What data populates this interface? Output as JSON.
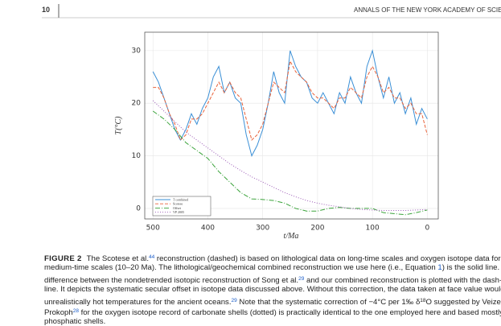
{
  "header": {
    "page": "10",
    "journal": "ANNALS OF THE NEW YORK ACADEMY OF SCIEN"
  },
  "chart_data": {
    "type": "line",
    "xlabel": "t/Ma",
    "ylabel": "T(°C)",
    "xlim": [
      515,
      -20
    ],
    "ylim": [
      -2,
      33.5
    ],
    "xticks": [
      500,
      400,
      300,
      200,
      100,
      0
    ],
    "yticks": [
      0,
      10,
      20,
      30
    ],
    "grid": true,
    "legend": "lower left",
    "series": [
      {
        "name": "T combined",
        "color": "#3a8fd6",
        "dash": "none",
        "x": [
          500,
          490,
          480,
          470,
          460,
          450,
          440,
          430,
          420,
          410,
          400,
          390,
          380,
          370,
          360,
          350,
          340,
          330,
          320,
          310,
          300,
          290,
          280,
          270,
          260,
          250,
          240,
          230,
          220,
          210,
          200,
          190,
          180,
          170,
          160,
          150,
          140,
          130,
          120,
          110,
          100,
          90,
          80,
          70,
          60,
          50,
          40,
          30,
          20,
          10,
          0
        ],
        "values": [
          26,
          24,
          21,
          18,
          15,
          13,
          15,
          18,
          16,
          19,
          21,
          25,
          27,
          22,
          24,
          21,
          20,
          14,
          10,
          12,
          15,
          20,
          26,
          22,
          20,
          30,
          27,
          25,
          24,
          21,
          20,
          22,
          20,
          18,
          22,
          20,
          25,
          22,
          20,
          27,
          30,
          25,
          21,
          25,
          20,
          22,
          18,
          21,
          16,
          19,
          17
        ]
      },
      {
        "name": "Scotese",
        "color": "#e8623a",
        "dash": "4,2",
        "x": [
          500,
          490,
          480,
          470,
          460,
          450,
          440,
          430,
          420,
          410,
          400,
          390,
          380,
          370,
          360,
          350,
          340,
          330,
          320,
          310,
          300,
          290,
          280,
          270,
          260,
          250,
          240,
          230,
          220,
          210,
          200,
          190,
          180,
          170,
          160,
          150,
          140,
          130,
          120,
          110,
          100,
          90,
          80,
          70,
          60,
          50,
          40,
          30,
          20,
          10,
          0
        ],
        "values": [
          23,
          23,
          21,
          18,
          16,
          13,
          14,
          17,
          17,
          18,
          20,
          22,
          24,
          22,
          24,
          22,
          21,
          17,
          13,
          14,
          16,
          20,
          24,
          23,
          22,
          28,
          26,
          25,
          24,
          22,
          21,
          21,
          20,
          19,
          21,
          21,
          23,
          22,
          21,
          25,
          27,
          25,
          22,
          23,
          21,
          21,
          19,
          20,
          18,
          18,
          14
        ]
      },
      {
        "name": "Offset",
        "color": "#3aa33a",
        "dash": "6,2,1,2",
        "x": [
          500,
          480,
          460,
          440,
          420,
          400,
          380,
          360,
          340,
          320,
          300,
          280,
          260,
          240,
          220,
          200,
          180,
          160,
          140,
          120,
          100,
          80,
          60,
          40,
          20,
          0
        ],
        "values": [
          18.5,
          17,
          15,
          12.5,
          11,
          9.5,
          7,
          5,
          3,
          1.8,
          1.7,
          1.5,
          1,
          0,
          -0.5,
          -0.5,
          0,
          0.2,
          0,
          0,
          0,
          -0.8,
          -1,
          -1.2,
          -0.8,
          -0.3
        ]
      },
      {
        "name": "VP 2005",
        "color": "#9b59b6",
        "dash": "1,2",
        "x": [
          500,
          480,
          460,
          440,
          420,
          400,
          380,
          360,
          340,
          320,
          300,
          280,
          260,
          240,
          220,
          200,
          180,
          160,
          140,
          120,
          100,
          80,
          60,
          40,
          20,
          0
        ],
        "values": [
          20.5,
          18.5,
          16.5,
          14.5,
          13,
          11.5,
          10,
          8.5,
          7.2,
          6,
          5,
          4,
          3,
          2.2,
          1.5,
          1,
          0.6,
          0.3,
          0,
          -0.2,
          -0.3,
          -0.4,
          -0.4,
          -0.4,
          -0.3,
          -0.2
        ]
      }
    ]
  },
  "caption": {
    "label": "FIGURE 2",
    "lines": [
      [
        "The Scotese et al.",
        "44",
        " reconstruction (dashed) is based on lithological data on long-time scales and oxygen isotope data for"
      ],
      [
        "medium-time scales (10–20 Ma). The lithological/geochemical combined reconstruction we use here (i.e., Equation ",
        "1",
        ") is the solid line. The"
      ],
      [
        "difference between the nondetrended isotopic reconstruction of Song et al.",
        "29",
        " and our combined reconstruction is plotted with the dash-dotted"
      ],
      [
        "line. It depicts the systematic secular offset in isotope data discussed above. Without this correction, the data taken at face value would require"
      ],
      [
        "unrealistically hot temperatures for the ancient oceans.",
        "29",
        " Note that the systematic correction of −4°C per 1‰ δ",
        "18",
        "O suggested by Veizer and"
      ],
      [
        "Prokoph",
        "28",
        " for the oxygen isotope record of carbonate shells (dotted) is practically identical to the one employed here and based mostly on"
      ],
      [
        "phosphatic shells."
      ]
    ]
  }
}
